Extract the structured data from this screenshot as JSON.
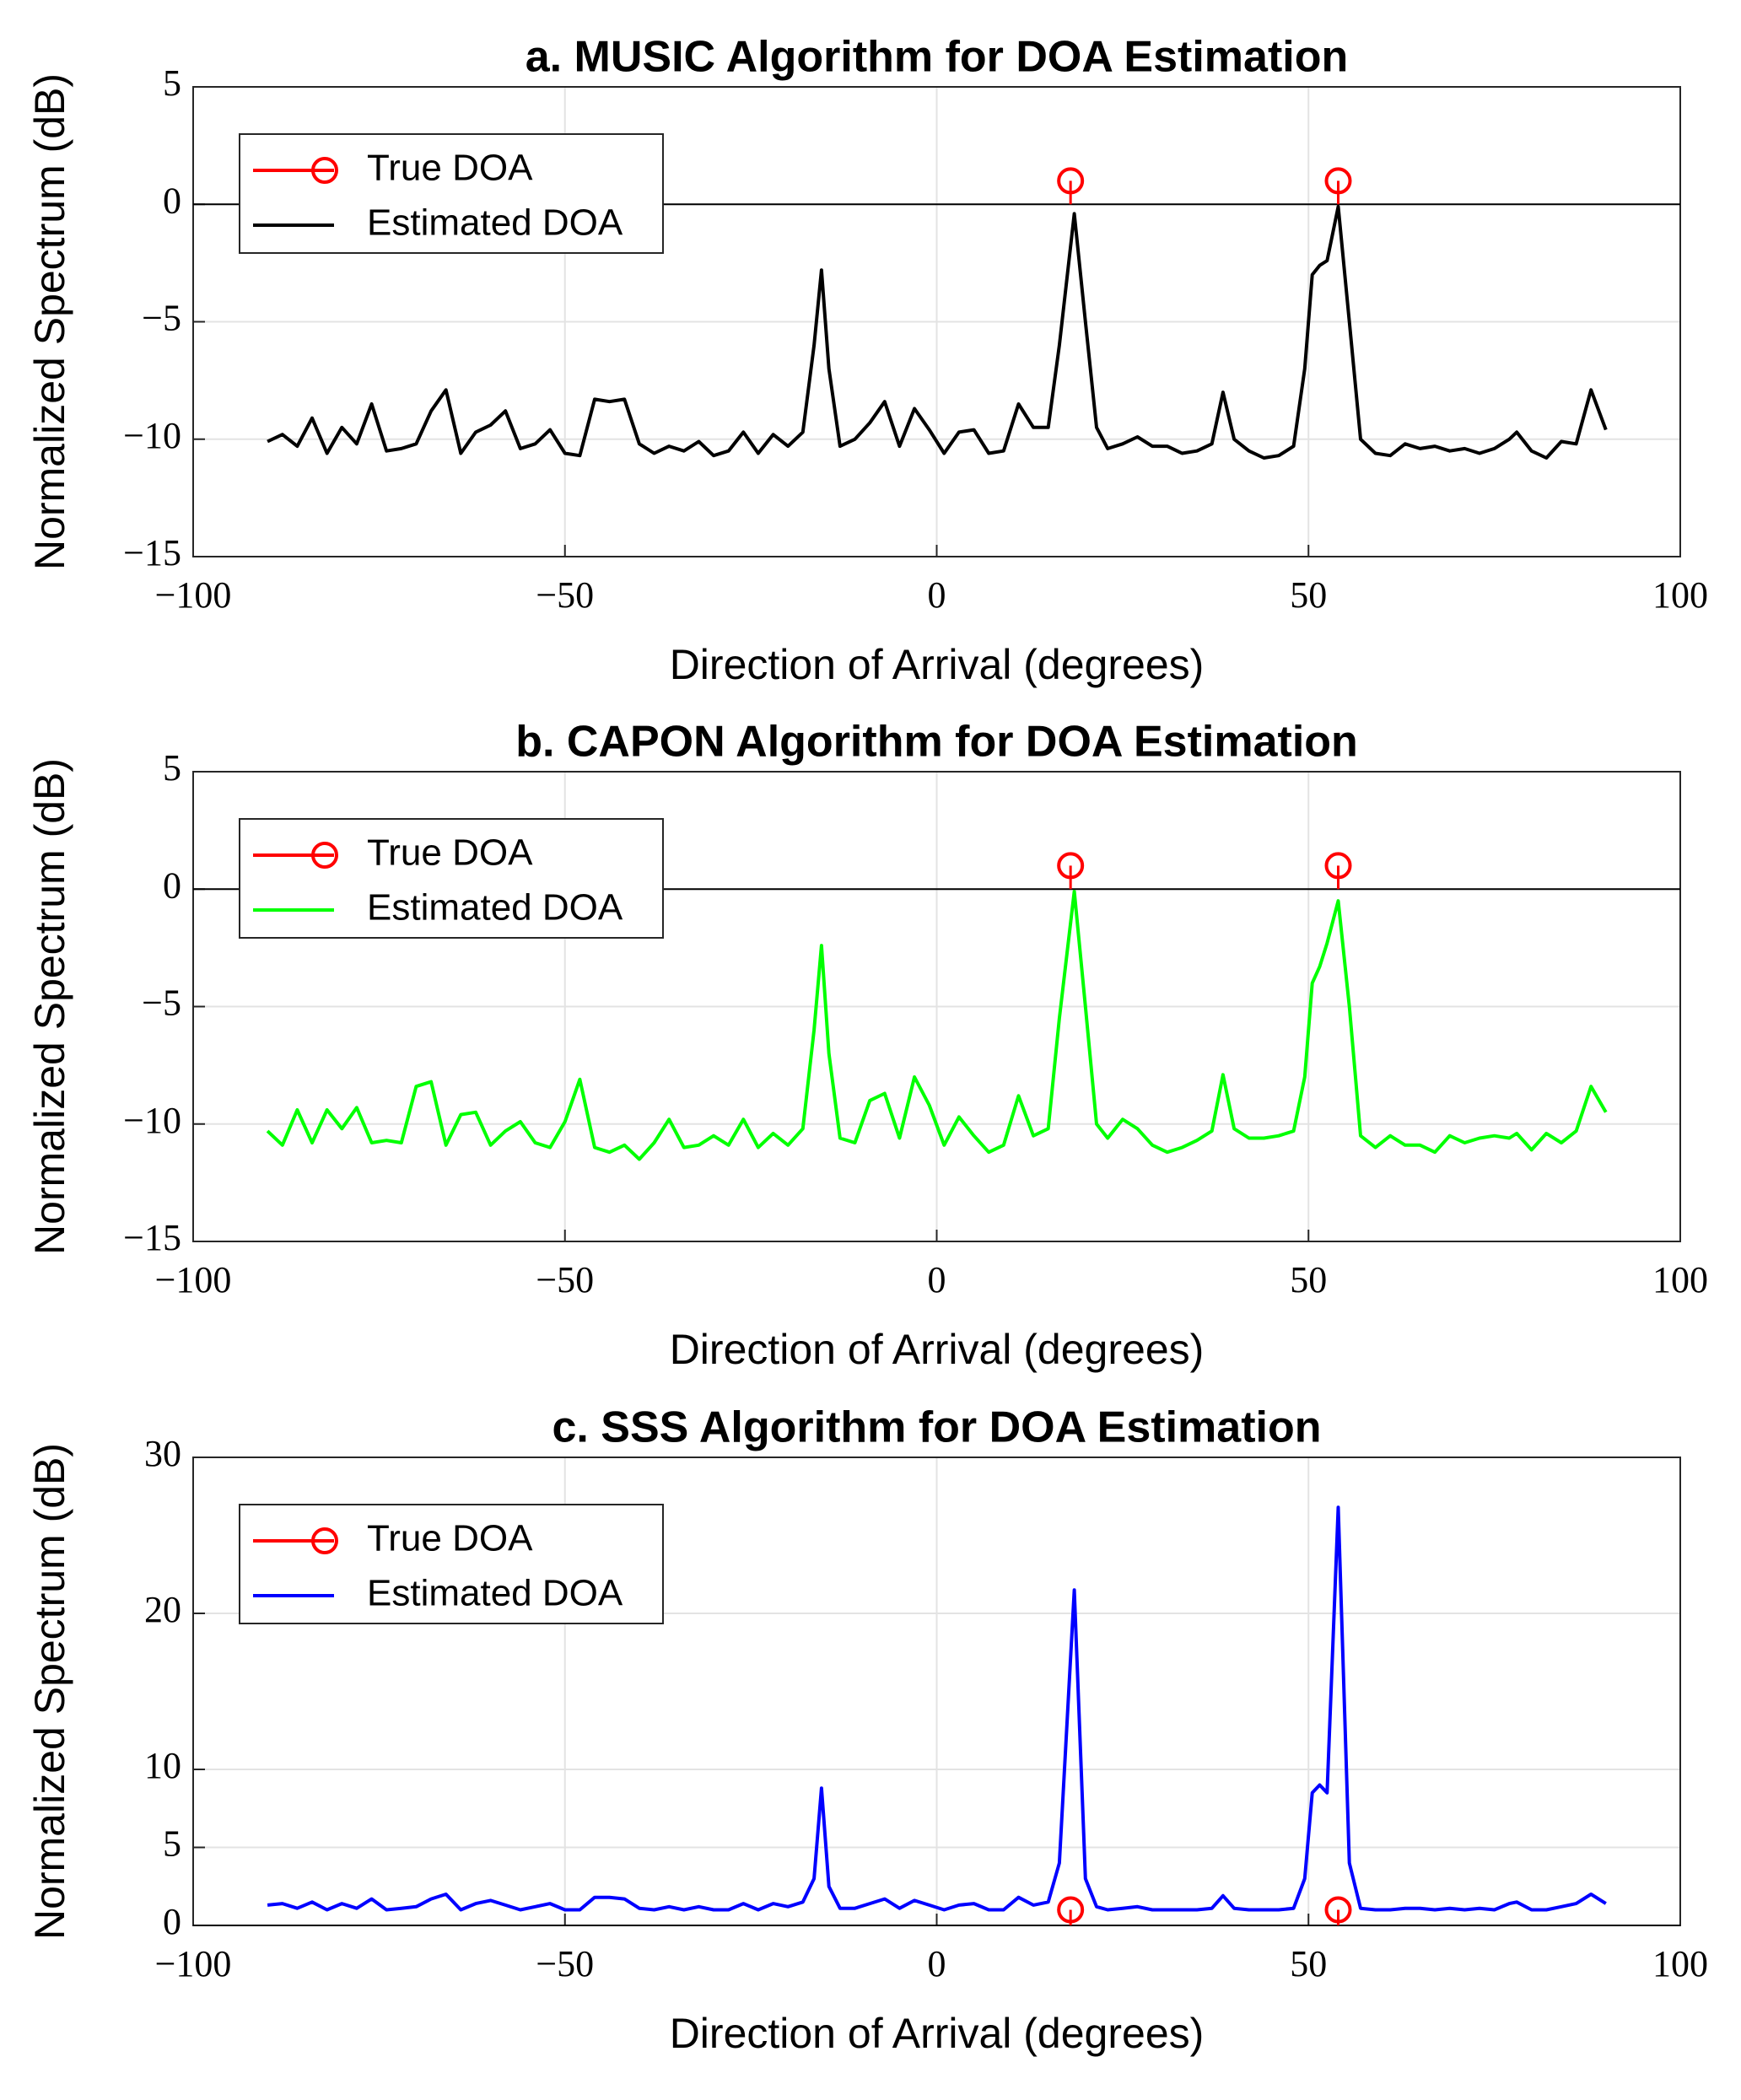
{
  "chart_data": [
    {
      "type": "line",
      "title": "a. MUSIC Algorithm for DOA Estimation",
      "x_label": "Direction of Arrival (degrees)",
      "y_label": "Normalized Spectrum (dB)",
      "xlim": [
        -100,
        100
      ],
      "xticks": [
        {
          "value": -100,
          "label": "−100"
        },
        {
          "value": -50,
          "label": "−50"
        },
        0,
        50,
        100
      ],
      "ylim": [
        -15,
        5
      ],
      "yticks": [
        {
          "value": -15,
          "label": "−15"
        },
        {
          "value": -10,
          "label": "−10"
        },
        {
          "value": -5,
          "label": "−5"
        },
        0,
        5
      ],
      "grid": true,
      "legend": "upper left",
      "series": [
        {
          "name": "True DOA",
          "color": "#ff0000",
          "style": "stem",
          "x": [
            18,
            54
          ],
          "values": [
            1,
            1
          ]
        },
        {
          "name": "Estimated DOA",
          "color": "#000000",
          "style": "line",
          "x": [
            -90,
            -88,
            -86,
            -84,
            -82,
            -80,
            -78,
            -76,
            -74,
            -72,
            -70,
            -68,
            -66,
            -64,
            -62,
            -60,
            -58,
            -56,
            -54,
            -52,
            -50,
            -48,
            -46,
            -44,
            -42,
            -40,
            -38,
            -36,
            -34,
            -32,
            -30,
            -28,
            -26,
            -24,
            -22,
            -20,
            -18,
            -16.5,
            -15.5,
            -14.5,
            -13,
            -11,
            -9,
            -7,
            -5,
            -3,
            -1,
            1,
            3,
            5,
            7,
            9,
            11,
            13,
            15,
            16.5,
            18.5,
            20,
            21.5,
            23,
            25,
            27,
            29,
            31,
            33,
            35,
            37,
            38.5,
            40,
            42,
            44,
            46,
            48,
            49.5,
            50.5,
            51.5,
            52.5,
            54,
            55.5,
            57,
            59,
            61,
            63,
            65,
            67,
            69,
            71,
            73,
            75,
            77,
            78,
            80,
            82,
            84,
            86,
            88,
            90
          ],
          "values": [
            -10.1,
            -9.8,
            -10.3,
            -9.1,
            -10.6,
            -9.5,
            -10.2,
            -8.5,
            -10.5,
            -10.4,
            -10.2,
            -8.8,
            -7.9,
            -10.6,
            -9.7,
            -9.4,
            -8.8,
            -10.4,
            -10.2,
            -9.6,
            -10.6,
            -10.7,
            -8.3,
            -8.4,
            -8.3,
            -10.2,
            -10.6,
            -10.3,
            -10.5,
            -10.1,
            -10.7,
            -10.5,
            -9.7,
            -10.6,
            -9.8,
            -10.3,
            -9.7,
            -6,
            -2.8,
            -7,
            -10.3,
            -10.0,
            -9.3,
            -8.4,
            -10.3,
            -8.7,
            -9.6,
            -10.6,
            -9.7,
            -9.6,
            -10.6,
            -10.5,
            -8.5,
            -9.5,
            -9.5,
            -6,
            -0.4,
            -5,
            -9.5,
            -10.4,
            -10.2,
            -9.9,
            -10.3,
            -10.3,
            -10.6,
            -10.5,
            -10.2,
            -8.0,
            -10.0,
            -10.5,
            -10.8,
            -10.7,
            -10.3,
            -7,
            -3,
            -2.6,
            -2.4,
            -0.1,
            -5,
            -10.0,
            -10.6,
            -10.7,
            -10.2,
            -10.4,
            -10.3,
            -10.5,
            -10.4,
            -10.6,
            -10.4,
            -10.0,
            -9.7,
            -10.5,
            -10.8,
            -10.1,
            -10.2,
            -7.9,
            -9.6
          ]
        }
      ]
    },
    {
      "type": "line",
      "title": "b. CAPON Algorithm for DOA Estimation",
      "x_label": "Direction of Arrival (degrees)",
      "y_label": "Normalized Spectrum (dB)",
      "xlim": [
        -100,
        100
      ],
      "xticks": [
        {
          "value": -100,
          "label": "−100"
        },
        {
          "value": -50,
          "label": "−50"
        },
        0,
        50,
        100
      ],
      "ylim": [
        -15,
        5
      ],
      "yticks": [
        {
          "value": -15,
          "label": "−15"
        },
        {
          "value": -10,
          "label": "−10"
        },
        {
          "value": -5,
          "label": "−5"
        },
        0,
        5
      ],
      "grid": true,
      "legend": "upper left",
      "series": [
        {
          "name": "True DOA",
          "color": "#ff0000",
          "style": "stem",
          "x": [
            18,
            54
          ],
          "values": [
            1,
            1
          ]
        },
        {
          "name": "Estimated DOA",
          "color": "#00ff00",
          "style": "line",
          "x": [
            -90,
            -88,
            -86,
            -84,
            -82,
            -80,
            -78,
            -76,
            -74,
            -72,
            -70,
            -68,
            -66,
            -64,
            -62,
            -60,
            -58,
            -56,
            -54,
            -52,
            -50,
            -48,
            -46,
            -44,
            -42,
            -40,
            -38,
            -36,
            -34,
            -32,
            -30,
            -28,
            -26,
            -24,
            -22,
            -20,
            -18,
            -16.5,
            -15.5,
            -14.5,
            -13,
            -11,
            -9,
            -7,
            -5,
            -3,
            -1,
            1,
            3,
            5,
            7,
            9,
            11,
            13,
            15,
            16.5,
            18.5,
            20,
            21.5,
            23,
            25,
            27,
            29,
            31,
            33,
            35,
            37,
            38.5,
            40,
            42,
            44,
            46,
            48,
            49.5,
            50.5,
            51.5,
            52.5,
            54,
            55.5,
            57,
            59,
            61,
            63,
            65,
            67,
            69,
            71,
            73,
            75,
            77,
            78,
            80,
            82,
            84,
            86,
            88,
            90
          ],
          "values": [
            -10.3,
            -10.9,
            -9.4,
            -10.8,
            -9.4,
            -10.2,
            -9.3,
            -10.8,
            -10.7,
            -10.8,
            -8.4,
            -8.2,
            -10.9,
            -9.6,
            -9.5,
            -10.9,
            -10.3,
            -9.9,
            -10.8,
            -11.0,
            -9.9,
            -8.1,
            -11.0,
            -11.2,
            -10.9,
            -11.5,
            -10.8,
            -9.8,
            -11.0,
            -10.9,
            -10.5,
            -10.9,
            -9.8,
            -11.0,
            -10.4,
            -10.9,
            -10.2,
            -6,
            -2.4,
            -7,
            -10.6,
            -10.8,
            -9.0,
            -8.7,
            -10.6,
            -8.0,
            -9.2,
            -10.9,
            -9.7,
            -10.5,
            -11.2,
            -10.9,
            -8.8,
            -10.5,
            -10.2,
            -5.5,
            -0.1,
            -5,
            -10.0,
            -10.6,
            -9.8,
            -10.2,
            -10.9,
            -11.2,
            -11.0,
            -10.7,
            -10.3,
            -7.9,
            -10.2,
            -10.6,
            -10.6,
            -10.5,
            -10.3,
            -8,
            -4,
            -3.3,
            -2.3,
            -0.5,
            -5,
            -10.5,
            -11.0,
            -10.5,
            -10.9,
            -10.9,
            -11.2,
            -10.5,
            -10.8,
            -10.6,
            -10.5,
            -10.6,
            -10.4,
            -11.1,
            -10.4,
            -10.8,
            -10.3,
            -8.4,
            -9.5
          ]
        }
      ]
    },
    {
      "type": "line",
      "title": "c. SSS Algorithm for DOA Estimation",
      "x_label": "Direction of Arrival (degrees)",
      "y_label": "Normalized Spectrum (dB)",
      "xlim": [
        -100,
        100
      ],
      "xticks": [
        {
          "value": -100,
          "label": "−100"
        },
        {
          "value": -50,
          "label": "−50"
        },
        0,
        50,
        100
      ],
      "ylim": [
        0,
        30
      ],
      "yticks": [
        0,
        5,
        10,
        20,
        30
      ],
      "grid": true,
      "legend": "upper left",
      "series": [
        {
          "name": "True DOA",
          "color": "#ff0000",
          "style": "stem",
          "x": [
            18,
            54
          ],
          "values": [
            1,
            1
          ]
        },
        {
          "name": "Estimated DOA",
          "color": "#0000ff",
          "style": "line",
          "x": [
            -90,
            -88,
            -86,
            -84,
            -82,
            -80,
            -78,
            -76,
            -74,
            -72,
            -70,
            -68,
            -66,
            -64,
            -62,
            -60,
            -58,
            -56,
            -54,
            -52,
            -50,
            -48,
            -46,
            -44,
            -42,
            -40,
            -38,
            -36,
            -34,
            -32,
            -30,
            -28,
            -26,
            -24,
            -22,
            -20,
            -18,
            -16.5,
            -15.5,
            -14.5,
            -13,
            -11,
            -9,
            -7,
            -5,
            -3,
            -1,
            1,
            3,
            5,
            7,
            9,
            11,
            13,
            15,
            16.5,
            18.5,
            20,
            21.5,
            23,
            25,
            27,
            29,
            31,
            33,
            35,
            37,
            38.5,
            40,
            42,
            44,
            46,
            48,
            49.5,
            50.5,
            51.5,
            52.5,
            54,
            55.5,
            57,
            59,
            61,
            63,
            65,
            67,
            69,
            71,
            73,
            75,
            77,
            78,
            80,
            82,
            84,
            86,
            88,
            90
          ],
          "values": [
            1.3,
            1.4,
            1.1,
            1.5,
            1.0,
            1.4,
            1.1,
            1.7,
            1.0,
            1.1,
            1.2,
            1.7,
            2.0,
            1.0,
            1.4,
            1.6,
            1.3,
            1.0,
            1.2,
            1.4,
            1.0,
            1.0,
            1.8,
            1.8,
            1.7,
            1.1,
            1.0,
            1.2,
            1.0,
            1.2,
            1.0,
            1.0,
            1.4,
            1.0,
            1.4,
            1.2,
            1.5,
            3,
            8.8,
            2.5,
            1.1,
            1.1,
            1.4,
            1.7,
            1.1,
            1.6,
            1.3,
            1.0,
            1.3,
            1.4,
            1.0,
            1.0,
            1.8,
            1.3,
            1.5,
            4,
            21.5,
            3,
            1.2,
            1.0,
            1.1,
            1.2,
            1.0,
            1.0,
            1.0,
            1.0,
            1.1,
            1.9,
            1.1,
            1.0,
            1.0,
            1.0,
            1.1,
            3,
            8.5,
            9.0,
            8.5,
            26.8,
            4,
            1.1,
            1.0,
            1.0,
            1.1,
            1.1,
            1.0,
            1.1,
            1.0,
            1.1,
            1.0,
            1.4,
            1.5,
            1.0,
            1.0,
            1.2,
            1.4,
            2.0,
            1.4
          ]
        }
      ]
    }
  ]
}
